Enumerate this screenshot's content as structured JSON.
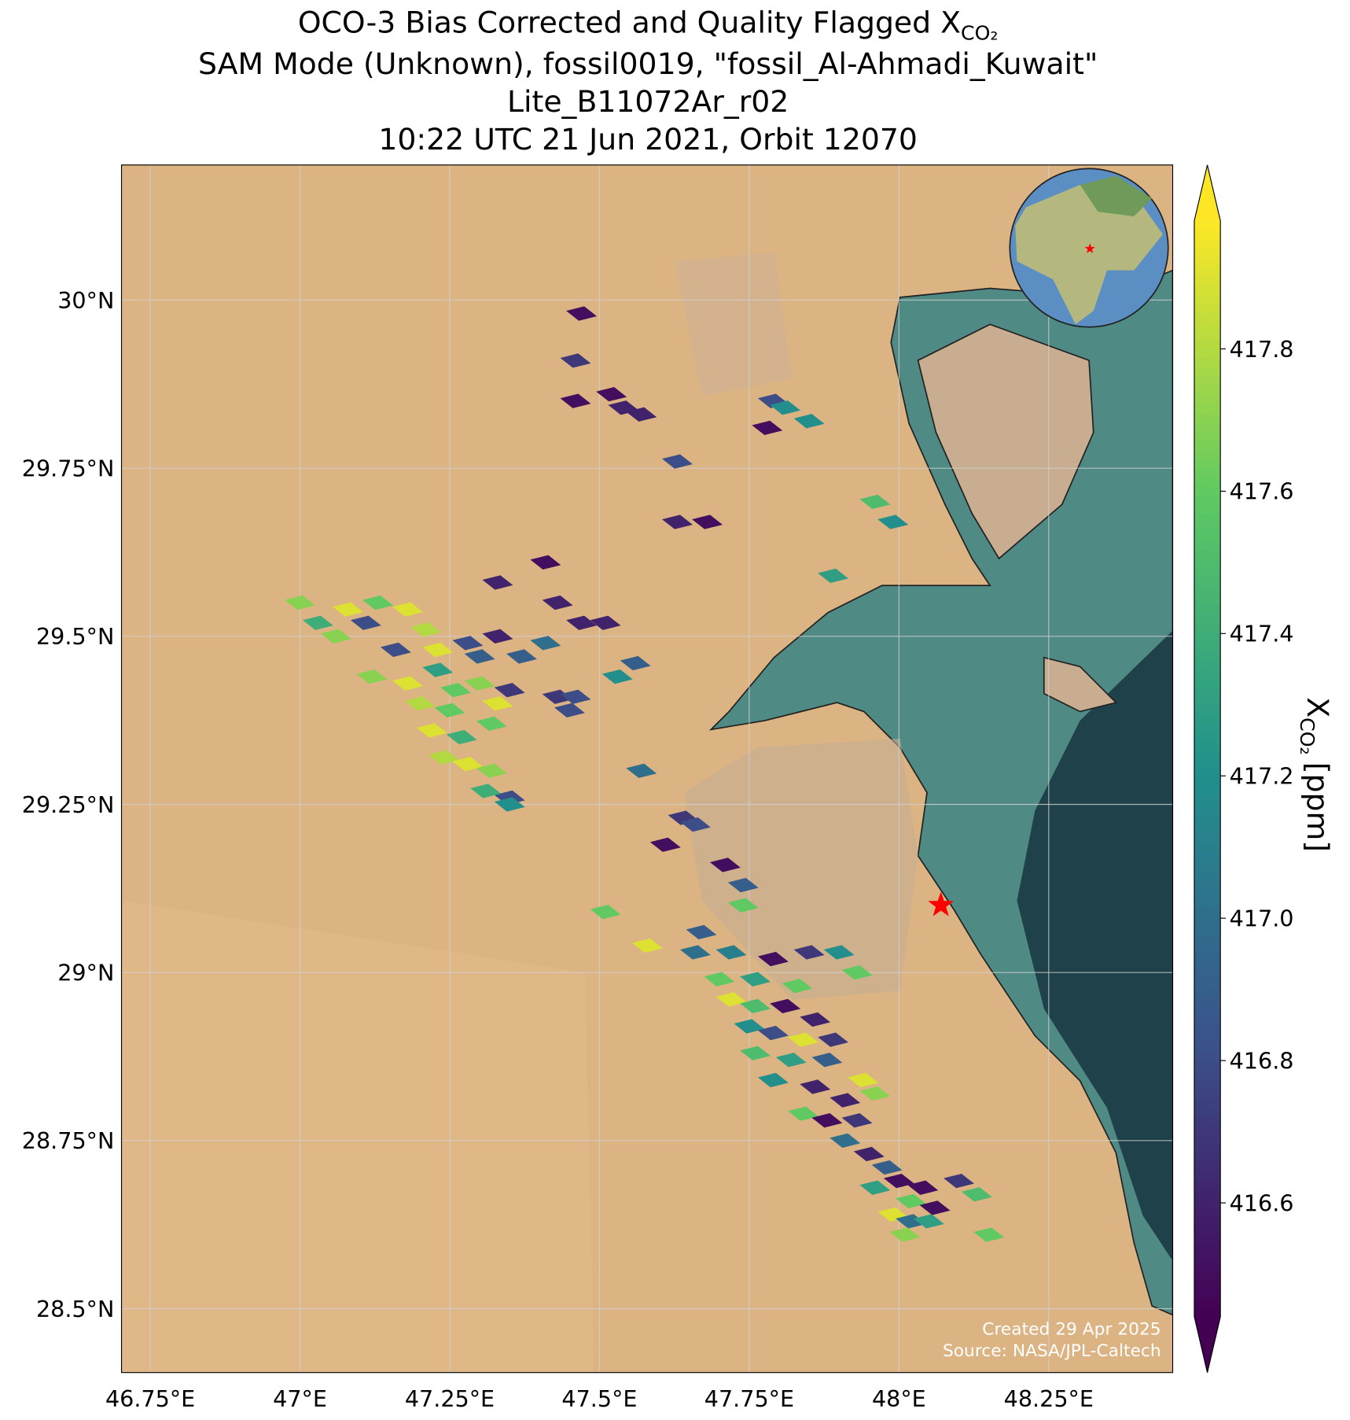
{
  "chart_data": {
    "type": "map",
    "title_lines": [
      "OCO-3 Bias Corrected and Quality Flagged X",
      "SAM Mode (Unknown), fossil0019, \"fossil_Al-Ahmadi_Kuwait\"",
      "Lite_B11072Ar_r02",
      "10:22 UTC 21 Jun 2021, Orbit 12070"
    ],
    "title_subscript": "CO₂",
    "colorbar_label": {
      "symbol": "X",
      "subscript": "CO₂",
      "unit": "[ppm]"
    },
    "colormap": "viridis",
    "xlim": [
      46.702,
      48.457
    ],
    "ylim": [
      28.405,
      30.201
    ],
    "clim": [
      416.44,
      417.98
    ],
    "xticks": [
      {
        "value": 46.75,
        "label": "46.75°E"
      },
      {
        "value": 47,
        "label": "47°E"
      },
      {
        "value": 47.25,
        "label": "47.25°E"
      },
      {
        "value": 47.5,
        "label": "47.5°E"
      },
      {
        "value": 47.75,
        "label": "47.75°E"
      },
      {
        "value": 48,
        "label": "48°E"
      },
      {
        "value": 48.25,
        "label": "48.25°E"
      }
    ],
    "yticks": [
      {
        "value": 28.5,
        "label": "28.5°N"
      },
      {
        "value": 28.75,
        "label": "28.75°N"
      },
      {
        "value": 29,
        "label": "29°N"
      },
      {
        "value": 29.25,
        "label": "29.25°N"
      },
      {
        "value": 29.5,
        "label": "29.5°N"
      },
      {
        "value": 29.75,
        "label": "29.75°N"
      },
      {
        "value": 30,
        "label": "30°N"
      }
    ],
    "cticks": [
      416.6,
      416.8,
      {
        "value": 417,
        "label": "417.0"
      },
      417.2,
      417.4,
      417.6,
      417.8
    ],
    "grid": true,
    "target": {
      "lon": 48.07,
      "lat": 29.1,
      "color": "#ff0000"
    },
    "annotations": [
      "Created 29 Apr 2025",
      "Source: NASA/JPL-Caltech"
    ],
    "footprints": {
      "lon": [
        47.47,
        47.46,
        47.46,
        47.52,
        47.54,
        47.57,
        47.63,
        47.63,
        47.68,
        47.79,
        47.81,
        47.78,
        47.85,
        47.96,
        47.99,
        47.89,
        47.41,
        47.33,
        47.43,
        47.47,
        47.51,
        47.56,
        47.53,
        47.41,
        47.0,
        47.08,
        47.13,
        47.18,
        47.03,
        47.11,
        47.21,
        47.06,
        47.16,
        47.23,
        47.28,
        47.33,
        47.3,
        47.37,
        47.12,
        47.18,
        47.23,
        47.26,
        47.3,
        47.35,
        47.2,
        47.25,
        47.33,
        47.22,
        47.27,
        47.32,
        47.24,
        47.28,
        47.32,
        47.35,
        47.31,
        47.35,
        47.43,
        47.46,
        47.45,
        47.57,
        47.64,
        47.66,
        47.61,
        47.71,
        47.74,
        47.51,
        47.58,
        47.67,
        47.74,
        47.66,
        47.72,
        47.76,
        47.79,
        47.85,
        47.9,
        47.83,
        47.7,
        47.72,
        47.76,
        47.81,
        47.86,
        47.75,
        47.79,
        47.84,
        47.89,
        47.76,
        47.82,
        47.88,
        47.94,
        47.79,
        47.86,
        47.91,
        47.96,
        47.84,
        47.88,
        47.93,
        47.91,
        47.95,
        47.98,
        47.96,
        48.0,
        48.04,
        48.1,
        48.02,
        48.06,
        47.99,
        48.02,
        48.05,
        48.01,
        48.15,
        48.13,
        47.93
      ],
      "lat": [
        29.98,
        29.91,
        29.85,
        29.86,
        29.84,
        29.83,
        29.76,
        29.67,
        29.67,
        29.85,
        29.84,
        29.81,
        29.82,
        29.7,
        29.67,
        29.59,
        29.61,
        29.58,
        29.55,
        29.52,
        29.52,
        29.46,
        29.44,
        29.49,
        29.55,
        29.54,
        29.55,
        29.54,
        29.52,
        29.52,
        29.51,
        29.5,
        29.48,
        29.48,
        29.49,
        29.5,
        29.47,
        29.47,
        29.44,
        29.43,
        29.45,
        29.42,
        29.43,
        29.42,
        29.4,
        29.39,
        29.4,
        29.36,
        29.35,
        29.37,
        29.32,
        29.31,
        29.3,
        29.26,
        29.27,
        29.25,
        29.41,
        29.41,
        29.39,
        29.3,
        29.23,
        29.22,
        29.19,
        29.16,
        29.13,
        29.09,
        29.04,
        29.06,
        29.1,
        29.03,
        29.03,
        28.99,
        29.02,
        29.03,
        29.03,
        28.98,
        28.99,
        28.96,
        28.95,
        28.95,
        28.93,
        28.92,
        28.91,
        28.9,
        28.9,
        28.88,
        28.87,
        28.87,
        28.84,
        28.84,
        28.83,
        28.81,
        28.82,
        28.79,
        28.78,
        28.78,
        28.75,
        28.73,
        28.71,
        28.68,
        28.69,
        28.68,
        28.69,
        28.66,
        28.65,
        28.64,
        28.63,
        28.63,
        28.61,
        28.61,
        28.67,
        29.0
      ],
      "values": [
        416.5,
        416.7,
        416.5,
        416.5,
        416.6,
        416.6,
        416.8,
        416.6,
        416.5,
        416.8,
        417.2,
        416.5,
        417.2,
        417.5,
        417.2,
        417.3,
        416.5,
        416.6,
        416.6,
        416.6,
        416.6,
        416.9,
        417.2,
        417.0,
        417.7,
        417.9,
        417.6,
        417.9,
        417.4,
        416.8,
        417.8,
        417.7,
        416.8,
        417.9,
        416.8,
        416.6,
        416.9,
        416.9,
        417.7,
        417.9,
        417.3,
        417.6,
        417.7,
        416.7,
        417.8,
        417.6,
        417.9,
        417.9,
        417.4,
        417.6,
        417.8,
        417.9,
        417.7,
        416.8,
        417.4,
        417.2,
        416.7,
        416.8,
        416.8,
        417.0,
        416.7,
        416.8,
        416.5,
        416.5,
        416.9,
        417.6,
        417.9,
        416.9,
        417.6,
        417.0,
        417.1,
        417.3,
        416.5,
        416.7,
        417.2,
        417.6,
        417.6,
        417.9,
        417.5,
        416.5,
        416.6,
        417.2,
        416.8,
        417.9,
        416.7,
        417.5,
        417.3,
        416.9,
        417.9,
        417.2,
        416.6,
        416.6,
        417.7,
        417.6,
        416.5,
        416.7,
        417.0,
        416.6,
        416.9,
        417.3,
        416.5,
        416.5,
        416.7,
        417.6,
        416.5,
        417.9,
        417.0,
        417.3,
        417.7,
        417.6,
        417.5,
        417.6
      ]
    }
  }
}
